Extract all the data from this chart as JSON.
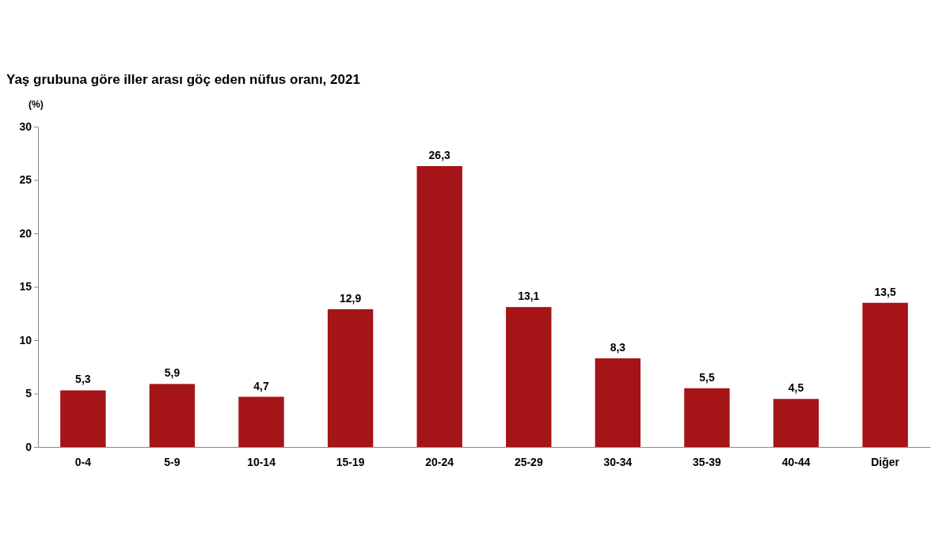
{
  "chart_data": {
    "type": "bar",
    "title": "Yaş grubuna göre iller arası göç eden nüfus oranı, 2021",
    "ylabel": "(%)",
    "categories": [
      "0-4",
      "5-9",
      "10-14",
      "15-19",
      "20-24",
      "25-29",
      "30-34",
      "35-39",
      "40-44",
      "Diğer"
    ],
    "values": [
      5.3,
      5.9,
      4.7,
      12.9,
      26.3,
      13.1,
      8.3,
      5.5,
      4.5,
      13.5
    ],
    "value_labels": [
      "5,3",
      "5,9",
      "4,7",
      "12,9",
      "26,3",
      "13,1",
      "8,3",
      "5,5",
      "4,5",
      "13,5"
    ],
    "color": "#a51416",
    "ylim": [
      0,
      30
    ],
    "yticks": [
      0,
      5,
      10,
      15,
      20,
      25,
      30
    ],
    "grid": false
  }
}
